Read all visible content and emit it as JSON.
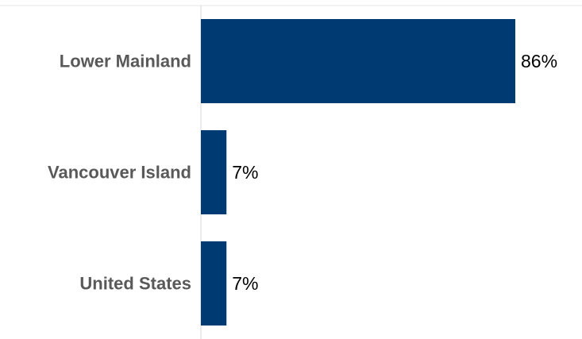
{
  "chart_data": {
    "type": "bar",
    "orientation": "horizontal",
    "categories": [
      "Lower Mainland",
      "Vancouver Island",
      "United States"
    ],
    "values": [
      86,
      7,
      7
    ],
    "data_labels": [
      "86%",
      "7%",
      "7%"
    ],
    "title": "",
    "xlabel": "",
    "ylabel": "",
    "xlim": [
      0,
      100
    ],
    "grid": false,
    "legend": "none",
    "bar_color": "#003a73",
    "axis_color": "#d9d9d9"
  }
}
